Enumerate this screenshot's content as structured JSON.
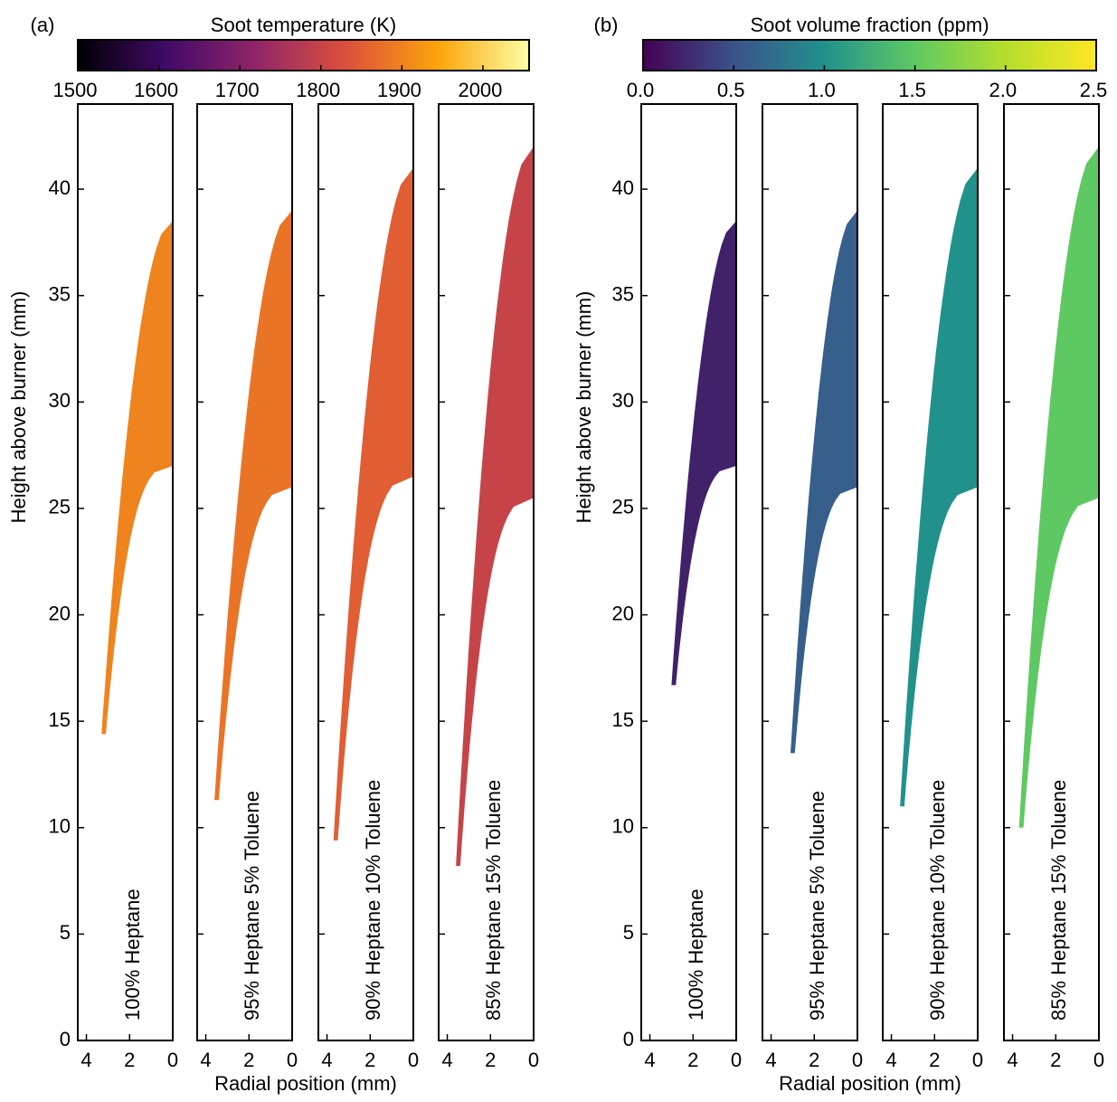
{
  "chart_data": [
    {
      "type": "flame-panels",
      "panel_label": "(a)",
      "colorbar": {
        "title": "Soot temperature (K)",
        "lim": [
          1500,
          2057
        ],
        "ticks": [
          1500,
          1600,
          1700,
          1800,
          1900,
          2000
        ],
        "colormap": "inferno"
      },
      "ylabel": "Height above burner (mm)",
      "xlabel": "Radial position (mm)",
      "ylim": [
        0,
        44
      ],
      "yticks": [
        0,
        5,
        10,
        15,
        20,
        25,
        30,
        35,
        40
      ],
      "xlim": [
        4.4,
        0
      ],
      "xticks": [
        4,
        2,
        0
      ],
      "panels": [
        {
          "label": "100% Heptane",
          "top": 38.5,
          "bottom": 14.4,
          "inner_end": 27,
          "base_radius": 3.3,
          "value": 1900
        },
        {
          "label": "95% Heptane 5% Toluene",
          "top": 39,
          "bottom": 11.3,
          "inner_end": 26,
          "base_radius": 3.6,
          "value": 1880
        },
        {
          "label": "90% Heptane 10% Toluene",
          "top": 41,
          "bottom": 9.4,
          "inner_end": 26.5,
          "base_radius": 3.7,
          "value": 1850
        },
        {
          "label": "85% Heptane 15% Toluene",
          "top": 42,
          "bottom": 8.2,
          "inner_end": 25.5,
          "base_radius": 3.6,
          "value": 1800
        }
      ]
    },
    {
      "type": "flame-panels",
      "panel_label": "(b)",
      "colorbar": {
        "title": "Soot volume fraction (ppm)",
        "lim": [
          0,
          2.5
        ],
        "ticks": [
          {
            "value": 0,
            "label": "0.0"
          },
          0.5,
          {
            "value": 1,
            "label": "1.0"
          },
          1.5,
          {
            "value": 2,
            "label": "2.0"
          },
          2.5
        ],
        "colormap": "viridis"
      },
      "ylabel": "Height above burner (mm)",
      "xlabel": "Radial position (mm)",
      "ylim": [
        0,
        44
      ],
      "yticks": [
        0,
        5,
        10,
        15,
        20,
        25,
        30,
        35,
        40
      ],
      "xlim": [
        4.4,
        0
      ],
      "xticks": [
        4,
        2,
        0
      ],
      "panels": [
        {
          "label": "100% Heptane",
          "top": 38.5,
          "bottom": 16.7,
          "inner_end": 27,
          "base_radius": 3.0,
          "value": 0.2
        },
        {
          "label": "95% Heptane 5% Toluene",
          "top": 39,
          "bottom": 13.5,
          "inner_end": 26,
          "base_radius": 3.1,
          "value": 0.6
        },
        {
          "label": "90% Heptane 10% Toluene",
          "top": 41,
          "bottom": 11,
          "inner_end": 26,
          "base_radius": 3.6,
          "value": 1.0
        },
        {
          "label": "85% Heptane 15% Toluene",
          "top": 42,
          "bottom": 10,
          "inner_end": 25.5,
          "base_radius": 3.7,
          "value": 1.5
        }
      ]
    }
  ]
}
